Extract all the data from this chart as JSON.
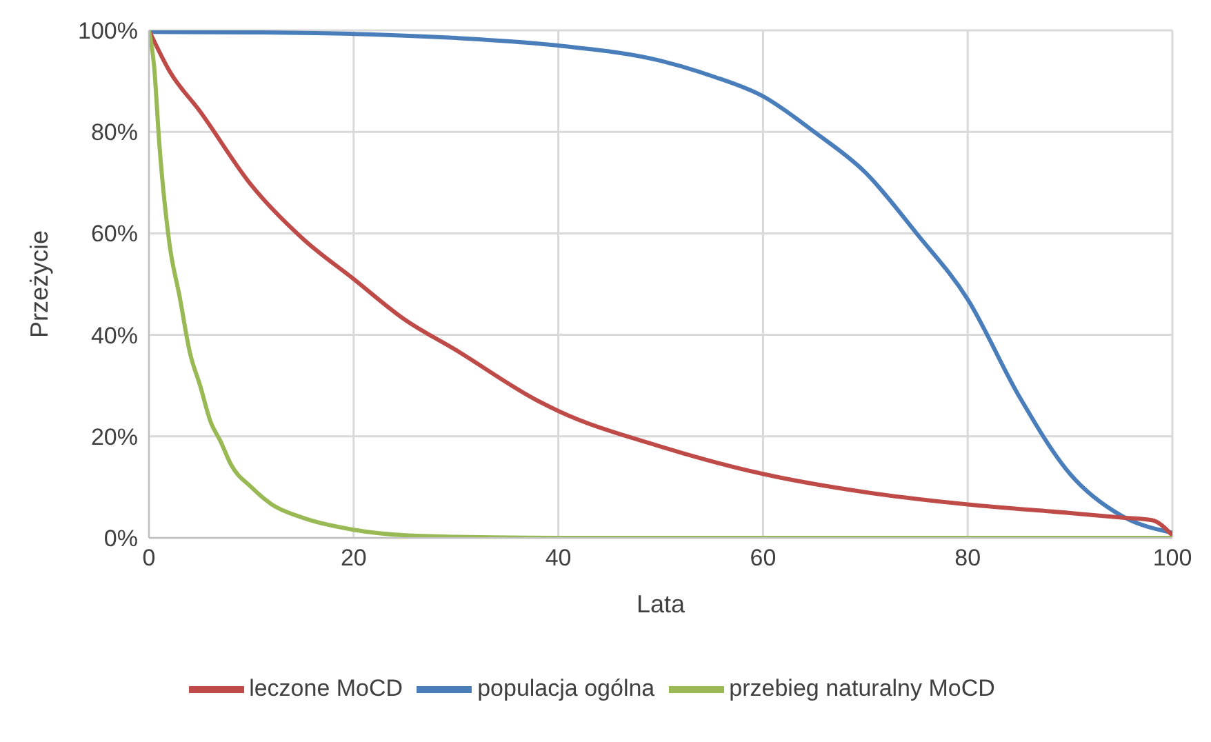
{
  "chart_data": {
    "type": "line",
    "xlabel": "Lata",
    "ylabel": "Przeżycie",
    "xlim": [
      0,
      100
    ],
    "xticks": [
      0,
      20,
      40,
      60,
      80,
      100
    ],
    "ylim": [
      0,
      100
    ],
    "yticks": [
      {
        "value": 0,
        "label": "0%"
      },
      {
        "value": 20,
        "label": "20%"
      },
      {
        "value": 40,
        "label": "40%"
      },
      {
        "value": 60,
        "label": "60%"
      },
      {
        "value": 80,
        "label": "80%"
      },
      {
        "value": 100,
        "label": "100%"
      }
    ],
    "grid": true,
    "legend": "bottom",
    "marker": "none",
    "line_style": "solid",
    "series": [
      {
        "name": "populacja ogólna",
        "color": "#4a7ebb",
        "x": [
          0,
          10,
          20,
          30,
          40,
          50,
          55,
          60,
          65,
          70,
          75,
          80,
          85,
          90,
          95,
          100
        ],
        "values": [
          99.7,
          99.6,
          99.3,
          98.5,
          97,
          94,
          91,
          87,
          80,
          72,
          60,
          47,
          28,
          12.6,
          4.4,
          1
        ]
      },
      {
        "name": "leczone MoCD",
        "color": "#be4b48",
        "x": [
          0,
          2,
          5,
          10,
          15,
          20,
          25,
          30,
          38,
          40,
          50,
          60,
          70,
          80,
          90,
          95,
          98,
          100
        ],
        "values": [
          100,
          92,
          84,
          69.5,
          59,
          51,
          43,
          37,
          27,
          25,
          18,
          12.6,
          9,
          6.6,
          4.9,
          4,
          3.5,
          0.5
        ]
      },
      {
        "name": "przebieg naturalny MoCD",
        "color": "#98b954",
        "x": [
          0,
          0.5,
          1,
          2,
          3,
          4,
          5,
          6,
          7,
          8,
          10,
          12,
          15,
          20,
          25,
          30,
          40,
          60,
          80,
          100
        ],
        "values": [
          100,
          93,
          78,
          58,
          47.5,
          36.5,
          30,
          23,
          19,
          14.5,
          10,
          6.6,
          4,
          1.6,
          0.5,
          0.2,
          0,
          0,
          0,
          0
        ]
      }
    ]
  }
}
